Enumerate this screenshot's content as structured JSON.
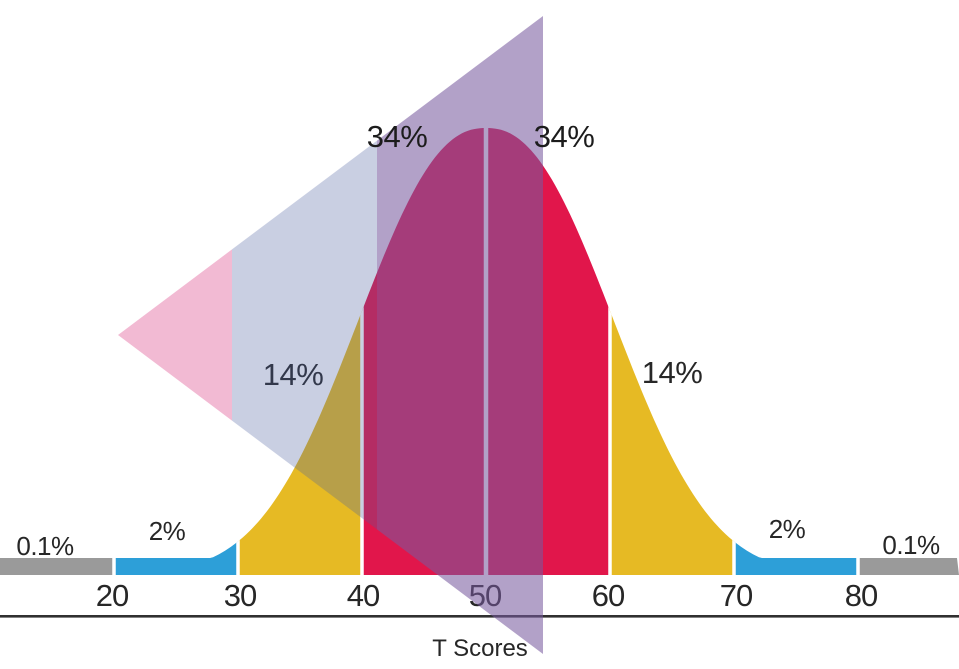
{
  "figure": {
    "axis_color": "#303030",
    "label_color": "#272727",
    "top_label_color": "#1c1c1c",
    "separator_color": "#ffffff"
  },
  "chart_data": {
    "type": "area",
    "subtype": "normal-distribution-bell-curve",
    "xlabel": "T Scores",
    "x_ticks": [
      20,
      30,
      40,
      50,
      60,
      70,
      80
    ],
    "segments": [
      {
        "x_range": [
          null,
          20
        ],
        "percent_label": "0.1%",
        "color": "#9a9a9a"
      },
      {
        "x_range": [
          20,
          30
        ],
        "percent_label": "2%",
        "color": "#2d9fd8"
      },
      {
        "x_range": [
          30,
          40
        ],
        "percent_label": "14%",
        "color": "#e6ba24"
      },
      {
        "x_range": [
          40,
          50
        ],
        "percent_label": "34%",
        "color": "#e1164b"
      },
      {
        "x_range": [
          50,
          60
        ],
        "percent_label": "34%",
        "color": "#e1164b"
      },
      {
        "x_range": [
          60,
          70
        ],
        "percent_label": "14%",
        "color": "#e6ba24"
      },
      {
        "x_range": [
          70,
          80
        ],
        "percent_label": "2%",
        "color": "#2d9fd8"
      },
      {
        "x_range": [
          80,
          null
        ],
        "percent_label": "0.1%",
        "color": "#9a9a9a"
      }
    ],
    "overlay": {
      "shape": "left-pointing-triangle-watermark",
      "bands": [
        {
          "fill": "rgba(227,102,158,0.45)"
        },
        {
          "fill": "rgba(75,95,158,0.30)"
        },
        {
          "fill": "rgba(120,90,158,0.57)"
        }
      ]
    }
  }
}
